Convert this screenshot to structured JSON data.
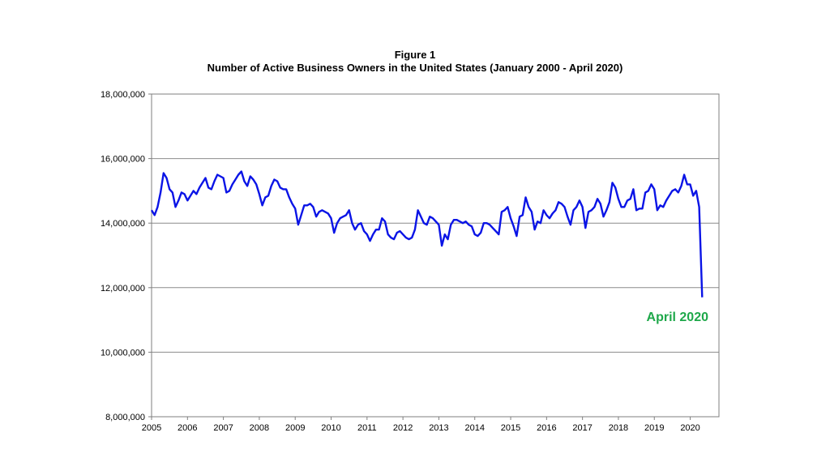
{
  "colors": {
    "line": "#0a14e6",
    "annotation": "#1ea84a",
    "grid": "#8c8c8c",
    "axis": "#7f7f7f"
  },
  "chart_data": {
    "type": "line",
    "title": "Figure 1",
    "subtitle": "Number of Active Business Owners in the United States (January 2000 - April 2020)",
    "xlabel": "",
    "ylabel": "",
    "xlim": [
      2005,
      2020.8
    ],
    "ylim": [
      8000000,
      18000000
    ],
    "grid": true,
    "legend": "none",
    "x_ticks": [
      "2005",
      "2006",
      "2007",
      "2008",
      "2009",
      "2010",
      "2011",
      "2012",
      "2013",
      "2014",
      "2015",
      "2016",
      "2017",
      "2018",
      "2019",
      "2020"
    ],
    "y_ticks": [
      "8,000,000",
      "10,000,000",
      "12,000,000",
      "14,000,000",
      "16,000,000",
      "18,000,000"
    ],
    "annotation": "April 2020",
    "series": [
      {
        "x_start": 2005,
        "x_step": 0.08333,
        "values": [
          14400000,
          14250000,
          14500000,
          14950000,
          15550000,
          15400000,
          15050000,
          14950000,
          14500000,
          14700000,
          14950000,
          14900000,
          14700000,
          14850000,
          15000000,
          14900000,
          15100000,
          15250000,
          15400000,
          15100000,
          15050000,
          15300000,
          15500000,
          15450000,
          15400000,
          14950000,
          15000000,
          15200000,
          15350000,
          15500000,
          15600000,
          15300000,
          15150000,
          15450000,
          15350000,
          15200000,
          14900000,
          14550000,
          14800000,
          14850000,
          15150000,
          15350000,
          15300000,
          15100000,
          15050000,
          15050000,
          14800000,
          14600000,
          14450000,
          13950000,
          14250000,
          14550000,
          14550000,
          14600000,
          14500000,
          14200000,
          14350000,
          14400000,
          14350000,
          14300000,
          14150000,
          13700000,
          14000000,
          14150000,
          14200000,
          14250000,
          14400000,
          14000000,
          13800000,
          13950000,
          14000000,
          13750000,
          13650000,
          13450000,
          13650000,
          13800000,
          13800000,
          14150000,
          14050000,
          13650000,
          13550000,
          13500000,
          13700000,
          13750000,
          13650000,
          13550000,
          13500000,
          13550000,
          13800000,
          14400000,
          14200000,
          14000000,
          13950000,
          14200000,
          14150000,
          14050000,
          13950000,
          13300000,
          13650000,
          13500000,
          13950000,
          14100000,
          14100000,
          14050000,
          14000000,
          14050000,
          13950000,
          13900000,
          13650000,
          13600000,
          13700000,
          14000000,
          14000000,
          13950000,
          13850000,
          13750000,
          13650000,
          14350000,
          14400000,
          14500000,
          14150000,
          13900000,
          13600000,
          14200000,
          14250000,
          14800000,
          14500000,
          14350000,
          13800000,
          14050000,
          14000000,
          14400000,
          14250000,
          14150000,
          14300000,
          14400000,
          14650000,
          14600000,
          14500000,
          14200000,
          13950000,
          14400000,
          14500000,
          14700000,
          14500000,
          13850000,
          14350000,
          14400000,
          14500000,
          14750000,
          14600000,
          14200000,
          14400000,
          14650000,
          15250000,
          15100000,
          14750000,
          14500000,
          14500000,
          14700000,
          14750000,
          15050000,
          14400000,
          14450000,
          14450000,
          14950000,
          15000000,
          15200000,
          15050000,
          14400000,
          14550000,
          14500000,
          14700000,
          14850000,
          15000000,
          15050000,
          14950000,
          15150000,
          15500000,
          15200000,
          15200000,
          14850000,
          15000000,
          14500000,
          11700000
        ]
      }
    ]
  }
}
